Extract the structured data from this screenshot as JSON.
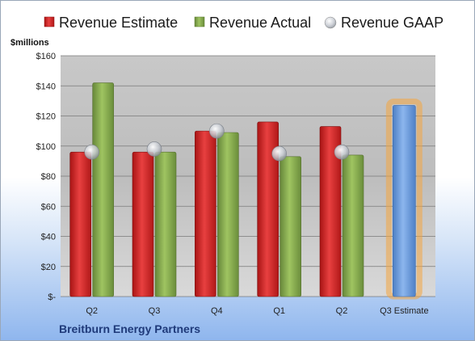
{
  "chart_data": {
    "type": "bar",
    "categories": [
      "Q2",
      "Q3",
      "Q4",
      "Q1",
      "Q2",
      "Q3 Estimate"
    ],
    "series": [
      {
        "name": "Revenue Estimate",
        "values": [
          96,
          96,
          110,
          116,
          113,
          null
        ]
      },
      {
        "name": "Revenue Actual",
        "values": [
          142,
          96,
          109,
          93,
          94,
          null
        ]
      },
      {
        "name": "Revenue GAAP",
        "values": [
          96,
          98,
          110,
          95,
          96,
          null
        ]
      },
      {
        "name": "Q3 Estimate",
        "values": [
          null,
          null,
          null,
          null,
          null,
          127
        ]
      }
    ],
    "title": "",
    "xlabel": "",
    "ylabel": "$millions",
    "ylim": [
      0,
      160
    ],
    "yticks": [
      0,
      20,
      40,
      60,
      80,
      100,
      120,
      140,
      160
    ],
    "ytick_labels": [
      "$-",
      "$20",
      "$40",
      "$60",
      "$80",
      "$100",
      "$120",
      "$140",
      "$160"
    ],
    "legend": {
      "position": "top",
      "items": [
        "Revenue Estimate",
        "Revenue Actual",
        "Revenue GAAP"
      ]
    },
    "company": "Breitburn Energy Partners",
    "colors": {
      "estimate": "#d62a2a",
      "actual": "#8aae4e",
      "gaap": "#c9cdd4",
      "q3_estimate": "#6f9fdd",
      "highlight_glow": "#f4a640"
    },
    "grid": true
  }
}
